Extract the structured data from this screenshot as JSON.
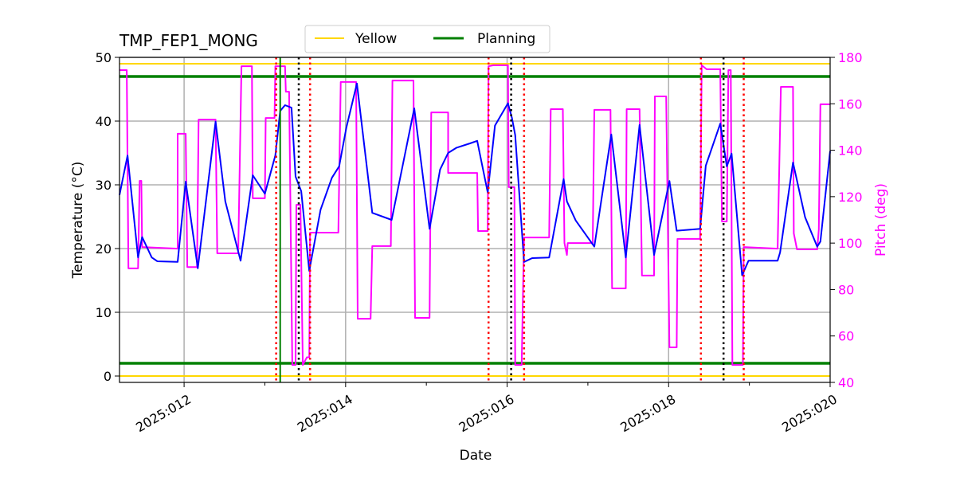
{
  "chart_data": {
    "type": "line",
    "title": "TMP_FEP1_MONG",
    "xlabel": "Date",
    "ylabel": "Temperature ($^\\circ$C)",
    "ylabel_display": "Temperature (°C)",
    "y2label": "Pitch (deg)",
    "xlim": [
      11.2,
      20.0
    ],
    "ylim": [
      -1,
      50
    ],
    "y2lim": [
      40,
      180
    ],
    "x_ticks": [
      {
        "value": 12,
        "label": "2025:012"
      },
      {
        "value": 14,
        "label": "2025:014"
      },
      {
        "value": 16,
        "label": "2025:016"
      },
      {
        "value": 18,
        "label": "2025:018"
      },
      {
        "value": 20,
        "label": "2025:020"
      }
    ],
    "x_minor_ticks": [
      13,
      15,
      17,
      19
    ],
    "y_ticks": [
      0,
      10,
      20,
      30,
      40,
      50
    ],
    "y2_ticks": [
      40,
      60,
      80,
      100,
      120,
      140,
      160,
      180
    ],
    "grid": true,
    "legend": {
      "placement": "top-center",
      "entries": [
        {
          "label": "Yellow",
          "color": "#ffd700"
        },
        {
          "label": "Planning",
          "color": "#008000"
        }
      ]
    },
    "limits": {
      "yellow": {
        "values": [
          0,
          49
        ],
        "color": "#ffd700"
      },
      "planning": {
        "values": [
          2,
          47
        ],
        "color": "#008000"
      }
    },
    "vlines": {
      "red_dotted": [
        13.14,
        13.56,
        15.77,
        16.21,
        18.4,
        18.93
      ],
      "black_dotted": [
        13.42,
        16.05,
        18.68
      ],
      "green_solid": [
        13.19
      ],
      "colors": {
        "red": "#ff0000",
        "black": "#000000",
        "green": "#008000"
      }
    },
    "series": [
      {
        "axis": "left",
        "color": "#0000ff",
        "points": [
          [
            11.2,
            28.4
          ],
          [
            11.3,
            34.6
          ],
          [
            11.43,
            18.6
          ],
          [
            11.48,
            21.8
          ],
          [
            11.6,
            18.6
          ],
          [
            11.67,
            18.0
          ],
          [
            11.92,
            17.9
          ],
          [
            12.02,
            30.5
          ],
          [
            12.17,
            16.9
          ],
          [
            12.39,
            39.9
          ],
          [
            12.51,
            27.4
          ],
          [
            12.7,
            18.1
          ],
          [
            12.85,
            31.5
          ],
          [
            13.0,
            28.6
          ],
          [
            13.13,
            34.6
          ],
          [
            13.19,
            41.6
          ],
          [
            13.25,
            42.5
          ],
          [
            13.33,
            42.1
          ],
          [
            13.38,
            31.3
          ],
          [
            13.45,
            29.0
          ],
          [
            13.55,
            16.5
          ],
          [
            13.69,
            26.1
          ],
          [
            13.83,
            31.1
          ],
          [
            13.92,
            32.9
          ],
          [
            14.01,
            39.0
          ],
          [
            14.14,
            45.9
          ],
          [
            14.33,
            25.6
          ],
          [
            14.57,
            24.5
          ],
          [
            14.85,
            42.0
          ],
          [
            15.04,
            23.1
          ],
          [
            15.17,
            32.4
          ],
          [
            15.27,
            35.0
          ],
          [
            15.37,
            35.8
          ],
          [
            15.54,
            36.5
          ],
          [
            15.63,
            36.9
          ],
          [
            15.76,
            28.8
          ],
          [
            15.85,
            39.3
          ],
          [
            16.01,
            42.8
          ],
          [
            16.06,
            40.5
          ],
          [
            16.1,
            37.8
          ],
          [
            16.21,
            17.9
          ],
          [
            16.31,
            18.5
          ],
          [
            16.52,
            18.6
          ],
          [
            16.7,
            30.9
          ],
          [
            16.74,
            27.4
          ],
          [
            16.85,
            24.4
          ],
          [
            17.08,
            20.3
          ],
          [
            17.29,
            37.9
          ],
          [
            17.47,
            18.6
          ],
          [
            17.64,
            39.4
          ],
          [
            17.82,
            19.0
          ],
          [
            18.01,
            30.6
          ],
          [
            18.1,
            22.8
          ],
          [
            18.39,
            23.1
          ],
          [
            18.46,
            33.0
          ],
          [
            18.64,
            39.6
          ],
          [
            18.72,
            32.9
          ],
          [
            18.78,
            34.9
          ],
          [
            18.91,
            15.8
          ],
          [
            18.99,
            18.1
          ],
          [
            19.35,
            18.1
          ],
          [
            19.38,
            19.4
          ],
          [
            19.54,
            33.5
          ],
          [
            19.69,
            24.9
          ],
          [
            19.84,
            20.3
          ],
          [
            19.88,
            21.1
          ],
          [
            20.0,
            35.3
          ]
        ]
      },
      {
        "axis": "right",
        "color": "#ff00ff",
        "points": [
          [
            11.2,
            174.5
          ],
          [
            11.29,
            174.5
          ],
          [
            11.31,
            89.1
          ],
          [
            11.43,
            89.1
          ],
          [
            11.45,
            126.8
          ],
          [
            11.47,
            126.8
          ],
          [
            11.48,
            98.3
          ],
          [
            11.92,
            97.6
          ],
          [
            11.92,
            147.1
          ],
          [
            12.02,
            147.1
          ],
          [
            12.04,
            89.7
          ],
          [
            12.16,
            89.7
          ],
          [
            12.18,
            153.2
          ],
          [
            12.39,
            153.2
          ],
          [
            12.41,
            95.6
          ],
          [
            12.67,
            95.6
          ],
          [
            12.71,
            176.2
          ],
          [
            12.84,
            176.2
          ],
          [
            12.85,
            119.3
          ],
          [
            13.0,
            119.3
          ],
          [
            13.01,
            153.9
          ],
          [
            13.12,
            153.9
          ],
          [
            13.13,
            176.2
          ],
          [
            13.25,
            176.2
          ],
          [
            13.26,
            165.2
          ],
          [
            13.3,
            165.2
          ],
          [
            13.34,
            47.5
          ],
          [
            13.38,
            47.5
          ],
          [
            13.39,
            116.5
          ],
          [
            13.44,
            116.5
          ],
          [
            13.47,
            47.5
          ],
          [
            13.52,
            50.8
          ],
          [
            13.55,
            50.8
          ],
          [
            13.56,
            104.5
          ],
          [
            13.91,
            104.5
          ],
          [
            13.94,
            169.4
          ],
          [
            14.13,
            169.4
          ],
          [
            14.15,
            67.4
          ],
          [
            14.31,
            67.4
          ],
          [
            14.33,
            98.7
          ],
          [
            14.56,
            98.7
          ],
          [
            14.58,
            170.0
          ],
          [
            14.84,
            170.0
          ],
          [
            14.86,
            67.8
          ],
          [
            15.04,
            67.8
          ],
          [
            15.06,
            156.3
          ],
          [
            15.27,
            156.3
          ],
          [
            15.27,
            130.2
          ],
          [
            15.63,
            130.2
          ],
          [
            15.64,
            105.2
          ],
          [
            15.76,
            105.2
          ],
          [
            15.77,
            176.2
          ],
          [
            15.83,
            176.6
          ],
          [
            16.01,
            176.6
          ],
          [
            16.02,
            124.1
          ],
          [
            16.09,
            124.1
          ],
          [
            16.1,
            47.5
          ],
          [
            16.18,
            47.5
          ],
          [
            16.21,
            102.4
          ],
          [
            16.52,
            102.4
          ],
          [
            16.54,
            157.7
          ],
          [
            16.69,
            157.7
          ],
          [
            16.71,
            100.0
          ],
          [
            16.74,
            94.9
          ],
          [
            16.75,
            100.0
          ],
          [
            17.06,
            100.0
          ],
          [
            17.08,
            157.4
          ],
          [
            17.28,
            157.4
          ],
          [
            17.3,
            80.5
          ],
          [
            17.47,
            80.5
          ],
          [
            17.48,
            157.7
          ],
          [
            17.64,
            157.7
          ],
          [
            17.67,
            86.0
          ],
          [
            17.82,
            86.0
          ],
          [
            17.83,
            163.2
          ],
          [
            17.97,
            163.2
          ],
          [
            18.01,
            55.1
          ],
          [
            18.1,
            55.1
          ],
          [
            18.11,
            101.8
          ],
          [
            18.39,
            101.8
          ],
          [
            18.41,
            176.6
          ],
          [
            18.47,
            174.9
          ],
          [
            18.64,
            174.9
          ],
          [
            18.66,
            109.3
          ],
          [
            18.72,
            109.3
          ],
          [
            18.74,
            174.5
          ],
          [
            18.77,
            174.5
          ],
          [
            18.79,
            47.5
          ],
          [
            18.92,
            47.5
          ],
          [
            18.93,
            98.3
          ],
          [
            19.35,
            97.6
          ],
          [
            19.39,
            167.3
          ],
          [
            19.54,
            167.3
          ],
          [
            19.55,
            104.2
          ],
          [
            19.59,
            97.3
          ],
          [
            19.84,
            97.3
          ],
          [
            19.86,
            105.9
          ],
          [
            19.88,
            159.8
          ],
          [
            20.0,
            159.8
          ]
        ]
      }
    ]
  }
}
